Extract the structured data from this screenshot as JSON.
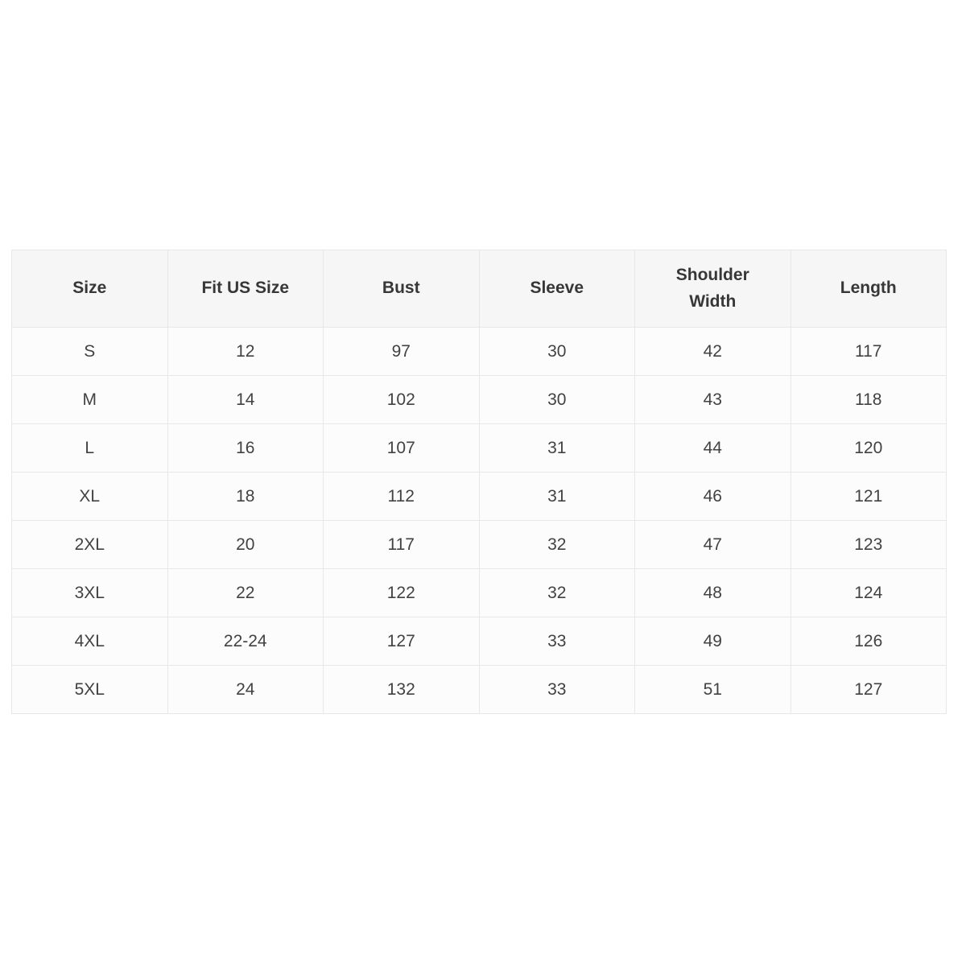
{
  "colors": {
    "page_background": "#ffffff",
    "header_background": "#f6f6f6",
    "cell_background": "#fcfcfc",
    "border": "#e7e7e7",
    "text": "#3b3b3b"
  },
  "chart_data": {
    "type": "table",
    "title": "",
    "columns": [
      "Size",
      "Fit US Size",
      "Bust",
      "Sleeve",
      "Shoulder Width",
      "Length"
    ],
    "rows": [
      [
        "S",
        "12",
        "97",
        "30",
        "42",
        "117"
      ],
      [
        "M",
        "14",
        "102",
        "30",
        "43",
        "118"
      ],
      [
        "L",
        "16",
        "107",
        "31",
        "44",
        "120"
      ],
      [
        "XL",
        "18",
        "112",
        "31",
        "46",
        "121"
      ],
      [
        "2XL",
        "20",
        "117",
        "32",
        "47",
        "123"
      ],
      [
        "3XL",
        "22",
        "122",
        "32",
        "48",
        "124"
      ],
      [
        "4XL",
        "22-24",
        "127",
        "33",
        "49",
        "126"
      ],
      [
        "5XL",
        "24",
        "132",
        "33",
        "51",
        "127"
      ]
    ]
  }
}
